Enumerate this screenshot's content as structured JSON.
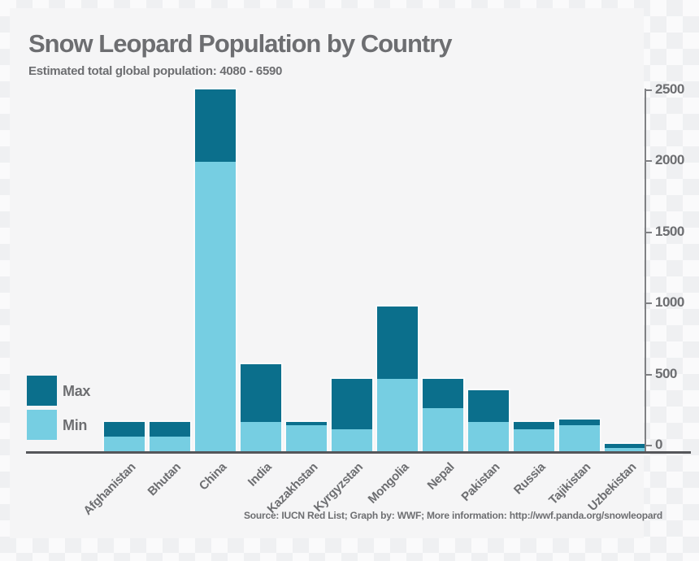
{
  "title": "Snow Leopard Population by Country",
  "subtitle": "Estimated total global population: 4080 - 6590",
  "source": "Source: IUCN Red List; Graph by: WWF; More information: http://wwf.panda.org/snowleopard",
  "legend": {
    "items": [
      {
        "label": "Max",
        "color_key": "max"
      },
      {
        "label": "Min",
        "color_key": "min"
      }
    ],
    "position": "middle-left"
  },
  "colors": {
    "max": "#0b6f8c",
    "min": "#76cee2",
    "text": "#6d6e71",
    "axis": "#808184",
    "baseline": "#55565a",
    "panel_bg": "#f5f5f6"
  },
  "chart_data": {
    "type": "bar",
    "stacked": true,
    "title": "Snow Leopard Population by Country",
    "subtitle": "Estimated total global population: 4080 - 6590",
    "categories": [
      "Afghanistan",
      "Bhutan",
      "China",
      "India",
      "Kazakhstan",
      "Kyrgyzstan",
      "Mongolia",
      "Nepal",
      "Pakistan",
      "Russia",
      "Tajikistan",
      "Uzbekistan"
    ],
    "series": [
      {
        "name": "Min",
        "values": [
          100,
          100,
          2000,
          200,
          180,
          150,
          500,
          300,
          200,
          150,
          180,
          20
        ]
      },
      {
        "name": "Max",
        "values": [
          200,
          200,
          2500,
          600,
          200,
          500,
          1000,
          500,
          420,
          200,
          220,
          50
        ]
      }
    ],
    "xlabel": "",
    "ylabel": "",
    "ylim": [
      0,
      2500
    ],
    "y_ticks": [
      0,
      500,
      1000,
      1500,
      2000,
      2500
    ],
    "y_axis_side": "right",
    "x_label_rotation": 45,
    "grid": false,
    "legend_position": "middle-left"
  }
}
